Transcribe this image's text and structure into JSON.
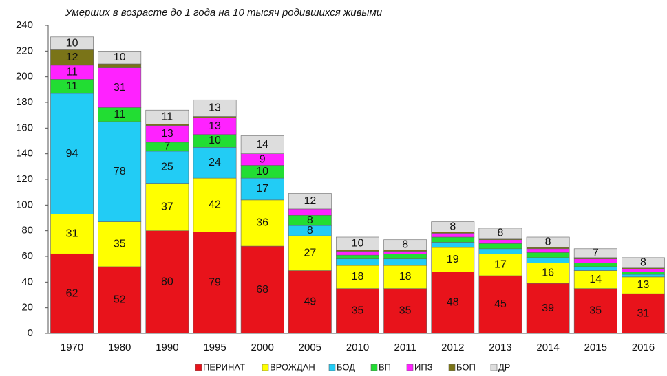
{
  "chart_data": {
    "type": "stacked-bar",
    "title": "Умерших в возрасте до 1 года на 10 тысяч родившихся живыми",
    "categories": [
      "1970",
      "1980",
      "1990",
      "1995",
      "2000",
      "2005",
      "2010",
      "2011",
      "2012",
      "2013",
      "2014",
      "2015",
      "2016"
    ],
    "series": [
      {
        "name": "ПЕРИНАТ",
        "color": "#e8131b",
        "values": [
          62,
          52,
          80,
          79,
          68,
          49,
          35,
          35,
          48,
          45,
          39,
          35,
          31
        ]
      },
      {
        "name": "ВРОЖДАН",
        "color": "#ffff00",
        "values": [
          31,
          35,
          37,
          42,
          36,
          27,
          18,
          18,
          19,
          17,
          16,
          14,
          13
        ]
      },
      {
        "name": "БОД",
        "color": "#22ccf5",
        "values": [
          94,
          78,
          25,
          24,
          17,
          8,
          5,
          5,
          4,
          4,
          4,
          3,
          2
        ]
      },
      {
        "name": "ВП",
        "color": "#22dd33",
        "values": [
          11,
          11,
          7,
          10,
          10,
          8,
          3,
          4,
          4,
          4,
          4,
          3,
          2
        ]
      },
      {
        "name": "ИПЗ",
        "color": "#ff22ff",
        "values": [
          11,
          31,
          13,
          13,
          9,
          5,
          3,
          2,
          3,
          3,
          3,
          3,
          2
        ]
      },
      {
        "name": "БОП",
        "color": "#7a7418",
        "values": [
          12,
          3,
          1,
          1,
          0,
          0,
          1,
          1,
          1,
          1,
          1,
          1,
          1
        ]
      },
      {
        "name": "ДР",
        "color": "#dddddd",
        "values": [
          10,
          10,
          11,
          13,
          14,
          12,
          10,
          8,
          8,
          8,
          8,
          7,
          8
        ]
      }
    ],
    "ylim": [
      0,
      240
    ],
    "yticks": [
      0,
      20,
      40,
      60,
      80,
      100,
      120,
      140,
      160,
      180,
      200,
      220,
      240
    ],
    "legend": "bottom"
  }
}
